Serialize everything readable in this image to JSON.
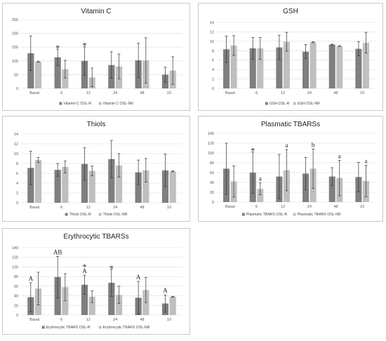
{
  "colors": {
    "series_r": "#7f7f7f",
    "series_nr": "#bfbfbf",
    "grid": "#dcdcdc",
    "error_bar": "#333333"
  },
  "chart_data": [
    {
      "type": "bar",
      "title": "Vitamin C",
      "categories": [
        "Basal",
        "6",
        "12",
        "24",
        "48",
        "10"
      ],
      "ylim": [
        0,
        250
      ],
      "yticks": [
        0,
        50,
        100,
        150,
        200,
        250
      ],
      "grid": true,
      "legend": "bottom",
      "series": [
        {
          "name": "Vitamin C OSL-R",
          "values": [
            128,
            113,
            100,
            85,
            102,
            50
          ],
          "errors": [
            63,
            30,
            52,
            48,
            62,
            27
          ]
        },
        {
          "name": "Vitamin C OSL-NR",
          "values": [
            97,
            70,
            40,
            80,
            102,
            65
          ],
          "errors": [
            2,
            32,
            34,
            45,
            82,
            50
          ]
        }
      ],
      "annotations": [
        {
          "category": 1,
          "series": 0,
          "text": "*"
        },
        {
          "category": 2,
          "series": 0,
          "text": "*"
        }
      ]
    },
    {
      "type": "bar",
      "title": "GSH",
      "categories": [
        "Basal",
        "6",
        "12",
        "24",
        "48",
        "10"
      ],
      "ylim": [
        0,
        14
      ],
      "yticks": [
        0,
        2,
        4,
        6,
        8,
        10,
        12,
        14
      ],
      "grid": true,
      "legend": "bottom",
      "series": [
        {
          "name": "GSH OSL-R",
          "values": [
            8.3,
            8.5,
            8.7,
            7.8,
            9.3,
            8.4
          ],
          "errors": [
            2.8,
            2.3,
            2.6,
            1.5,
            0.1,
            1.5
          ]
        },
        {
          "name": "GSH OSL-NR",
          "values": [
            9.1,
            8.5,
            9.9,
            9.8,
            9.0,
            9.7
          ],
          "errors": [
            2.1,
            2.3,
            2.0,
            0.1,
            0.1,
            2.2
          ]
        }
      ],
      "annotations": []
    },
    {
      "type": "bar",
      "title": "Thiols",
      "categories": [
        "Basal",
        "6",
        "12",
        "24",
        "48",
        "10"
      ],
      "ylim": [
        0,
        14
      ],
      "yticks": [
        0,
        2,
        4,
        6,
        8,
        10,
        12,
        14
      ],
      "grid": true,
      "legend": "bottom",
      "series": [
        {
          "name": "Thiols OSL-R",
          "values": [
            7.1,
            6.7,
            7.9,
            8.9,
            6.2,
            6.6
          ],
          "errors": [
            3.4,
            1.3,
            3.3,
            3.8,
            2.5,
            3.3
          ]
        },
        {
          "name": "Thiols OSL-NR",
          "values": [
            8.7,
            7.3,
            6.5,
            7.6,
            6.6,
            6.4
          ],
          "errors": [
            0.5,
            1.2,
            1.0,
            2.4,
            2.4,
            0.1
          ]
        }
      ],
      "annotations": []
    },
    {
      "type": "bar",
      "title": "Plasmatic TBARSs",
      "categories": [
        "Basal",
        "6",
        "12",
        "24",
        "48",
        "10"
      ],
      "ylim": [
        0,
        140
      ],
      "yticks": [
        0,
        20,
        40,
        60,
        80,
        100,
        120,
        140
      ],
      "grid": true,
      "legend": "bottom",
      "series": [
        {
          "name": "Plasmatic TBARS OSL-R",
          "values": [
            68,
            60,
            52,
            58,
            52,
            51
          ],
          "errors": [
            52,
            42,
            45,
            33,
            18,
            30
          ]
        },
        {
          "name": "Plasmatic TBARS OSL-NR",
          "values": [
            42,
            27,
            65,
            68,
            49,
            43
          ],
          "errors": [
            32,
            12,
            42,
            40,
            36,
            32
          ]
        }
      ],
      "annotations": [
        {
          "category": 1,
          "series": 0,
          "text": "*"
        },
        {
          "category": 1,
          "series": 1,
          "text": "a"
        },
        {
          "category": 2,
          "series": 1,
          "text": "a"
        },
        {
          "category": 3,
          "series": 1,
          "text": "b"
        },
        {
          "category": 4,
          "series": 1,
          "text": "a"
        },
        {
          "category": 5,
          "series": 1,
          "text": "a"
        }
      ]
    },
    {
      "type": "bar",
      "title": "Erythrocytic TBARSs",
      "categories": [
        "Basal",
        "6",
        "12",
        "24",
        "48",
        "10"
      ],
      "ylim": [
        0,
        140
      ],
      "yticks": [
        0,
        20,
        40,
        60,
        80,
        100,
        120,
        140
      ],
      "grid": true,
      "legend": "bottom",
      "series": [
        {
          "name": "Erythrocytic TBARS OSL-R",
          "values": [
            37,
            79,
            63,
            67,
            36,
            24
          ],
          "errors": [
            30,
            43,
            20,
            28,
            34,
            18
          ]
        },
        {
          "name": "Erythrocytic TBARS OSL-NR",
          "values": [
            55,
            58,
            38,
            42,
            52,
            38
          ],
          "errors": [
            34,
            28,
            12,
            18,
            26,
            1
          ]
        }
      ],
      "annotations": [
        {
          "category": 0,
          "series": 0,
          "text": "A"
        },
        {
          "category": 1,
          "series": 0,
          "text": "AB"
        },
        {
          "category": 2,
          "series": 0,
          "text": "*"
        },
        {
          "category": 2,
          "series": 0,
          "text": "A"
        },
        {
          "category": 3,
          "series": 0,
          "text": "*"
        },
        {
          "category": 4,
          "series": 0,
          "text": "A"
        },
        {
          "category": 5,
          "series": 0,
          "text": "A"
        }
      ]
    }
  ]
}
